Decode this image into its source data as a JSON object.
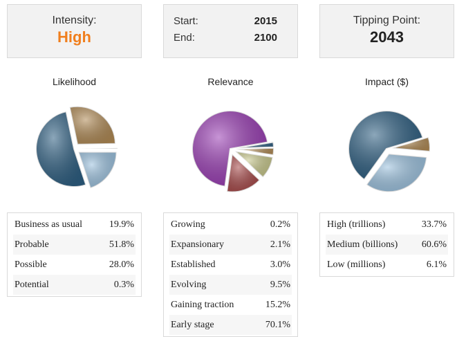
{
  "summary": {
    "intensity": {
      "label": "Intensity:",
      "value": "High"
    },
    "start": {
      "label": "Start:",
      "value": 2015
    },
    "end": {
      "label": "End:",
      "value": 2100
    },
    "tipping_point": {
      "label": "Tipping Point:",
      "value": 2043
    }
  },
  "chart_data": [
    {
      "type": "pie",
      "title": "Likelihood",
      "categories": [
        "Business as usual",
        "Probable",
        "Possible",
        "Potential"
      ],
      "values": [
        19.9,
        51.8,
        28.0,
        0.3
      ],
      "value_labels": [
        "19.9%",
        "51.8%",
        "28.0%",
        "0.3%"
      ],
      "colors": [
        "#9cc2df",
        "#2e5f82",
        "#b08a55",
        "#8a8a8a"
      ]
    },
    {
      "type": "pie",
      "title": "Relevance",
      "categories": [
        "Growing",
        "Expansionary",
        "Established",
        "Evolving",
        "Gaining traction",
        "Early stage"
      ],
      "values": [
        0.2,
        2.1,
        3.0,
        9.5,
        15.2,
        70.1
      ],
      "value_labels": [
        "0.2%",
        "2.1%",
        "3.0%",
        "9.5%",
        "15.2%",
        "70.1%"
      ],
      "colors": [
        "#7a7a7a",
        "#2e5f82",
        "#b08a55",
        "#c8c88c",
        "#a84a4a",
        "#9a3db4"
      ]
    },
    {
      "type": "pie",
      "title": "Impact ($)",
      "categories": [
        "High (trillions)",
        "Medium (billions)",
        "Low (millions)"
      ],
      "values": [
        33.7,
        60.6,
        6.1
      ],
      "value_labels": [
        "33.7%",
        "60.6%",
        "6.1%"
      ],
      "colors": [
        "#9cc2df",
        "#2e5f82",
        "#b08a55"
      ]
    }
  ]
}
